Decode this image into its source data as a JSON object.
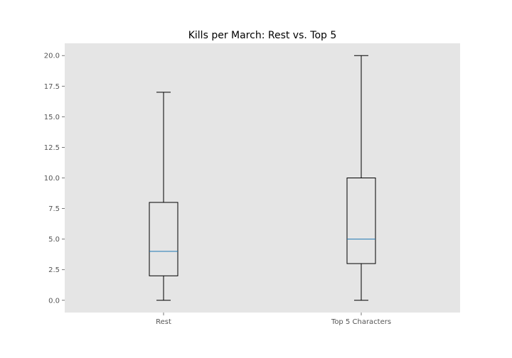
{
  "chart_data": {
    "type": "box",
    "title": "Kills per March: Rest vs. Top 5",
    "xlabel": "",
    "ylabel": "",
    "ylim": [
      -1.0,
      21.0
    ],
    "yticks": [
      "0.0",
      "2.5",
      "5.0",
      "7.5",
      "10.0",
      "12.5",
      "15.0",
      "17.5",
      "20.0"
    ],
    "grid": false,
    "background_color": "#e5e5e5",
    "median_color": "#1f77b4",
    "box_color": "#000000",
    "categories": [
      "Rest",
      "Top 5 Characters"
    ],
    "boxes": [
      {
        "name": "Rest",
        "whisker_low": 0,
        "q1": 2,
        "median": 4,
        "q3": 8,
        "whisker_high": 17
      },
      {
        "name": "Top 5 Characters",
        "whisker_low": 0,
        "q1": 3,
        "median": 5,
        "q3": 10,
        "whisker_high": 20
      }
    ]
  }
}
